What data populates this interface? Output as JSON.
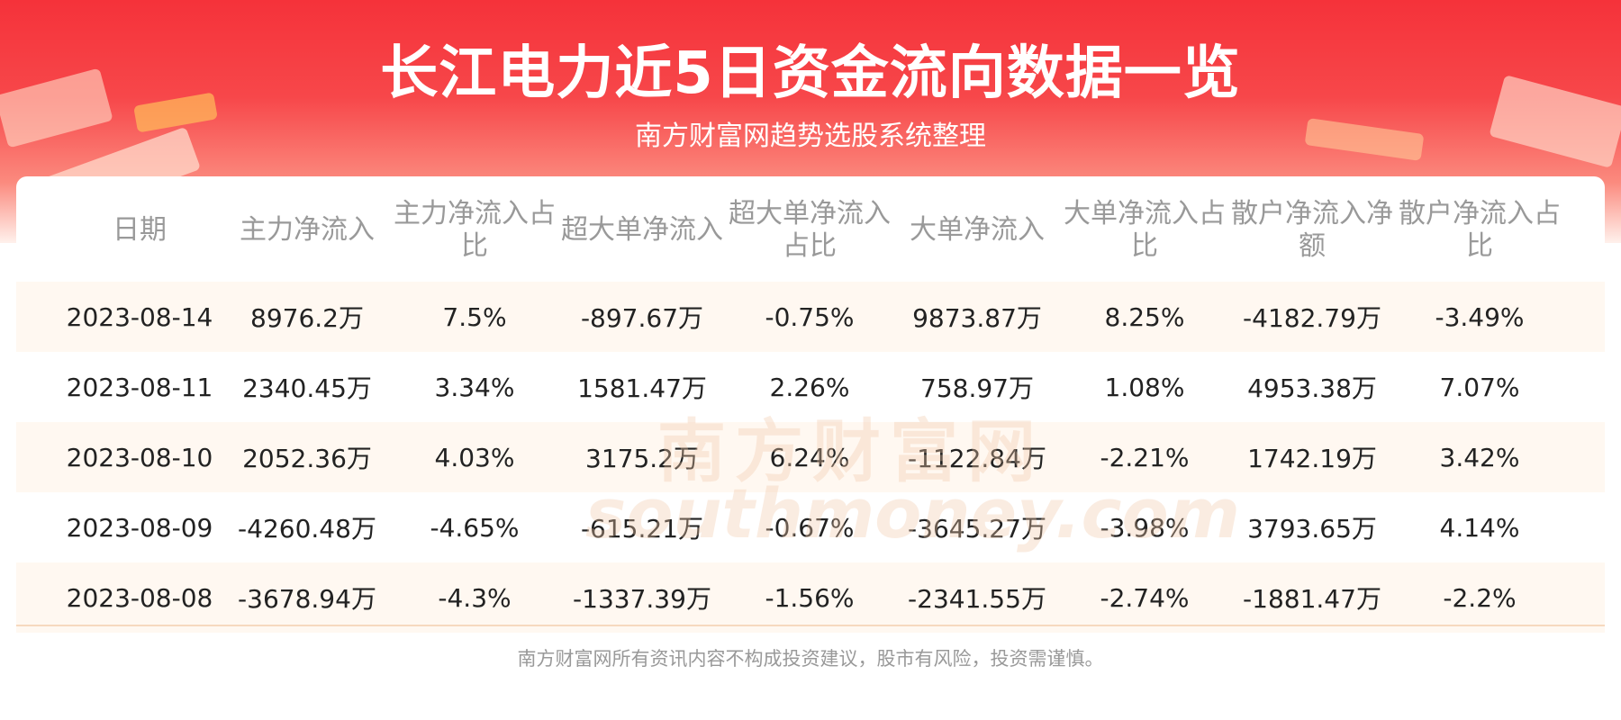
{
  "header": {
    "title": "长江电力近5日资金流向数据一览",
    "subtitle": "南方财富网趋势选股系统整理"
  },
  "watermark": {
    "cn": "南方财富网",
    "en": "southmoney.com"
  },
  "table": {
    "columns": [
      "日期",
      "主力净流入",
      "主力净流入占比",
      "超大单净流入",
      "超大单净流入占比",
      "大单净流入",
      "大单净流入占比",
      "散户净流入净额",
      "散户净流入占比"
    ],
    "rows": [
      [
        "2023-08-14",
        "8976.2万",
        "7.5%",
        "-897.67万",
        "-0.75%",
        "9873.87万",
        "8.25%",
        "-4182.79万",
        "-3.49%"
      ],
      [
        "2023-08-11",
        "2340.45万",
        "3.34%",
        "1581.47万",
        "2.26%",
        "758.97万",
        "1.08%",
        "4953.38万",
        "7.07%"
      ],
      [
        "2023-08-10",
        "2052.36万",
        "4.03%",
        "3175.2万",
        "6.24%",
        "-1122.84万",
        "-2.21%",
        "1742.19万",
        "3.42%"
      ],
      [
        "2023-08-09",
        "-4260.48万",
        "-4.65%",
        "-615.21万",
        "-0.67%",
        "-3645.27万",
        "-3.98%",
        "3793.65万",
        "4.14%"
      ],
      [
        "2023-08-08",
        "-3678.94万",
        "-4.3%",
        "-1337.39万",
        "-1.56%",
        "-2341.55万",
        "-2.74%",
        "-1881.47万",
        "-2.2%"
      ]
    ]
  },
  "footer": {
    "disclaimer": "南方财富网所有资讯内容不构成投资建议，股市有风险，投资需谨慎。"
  }
}
